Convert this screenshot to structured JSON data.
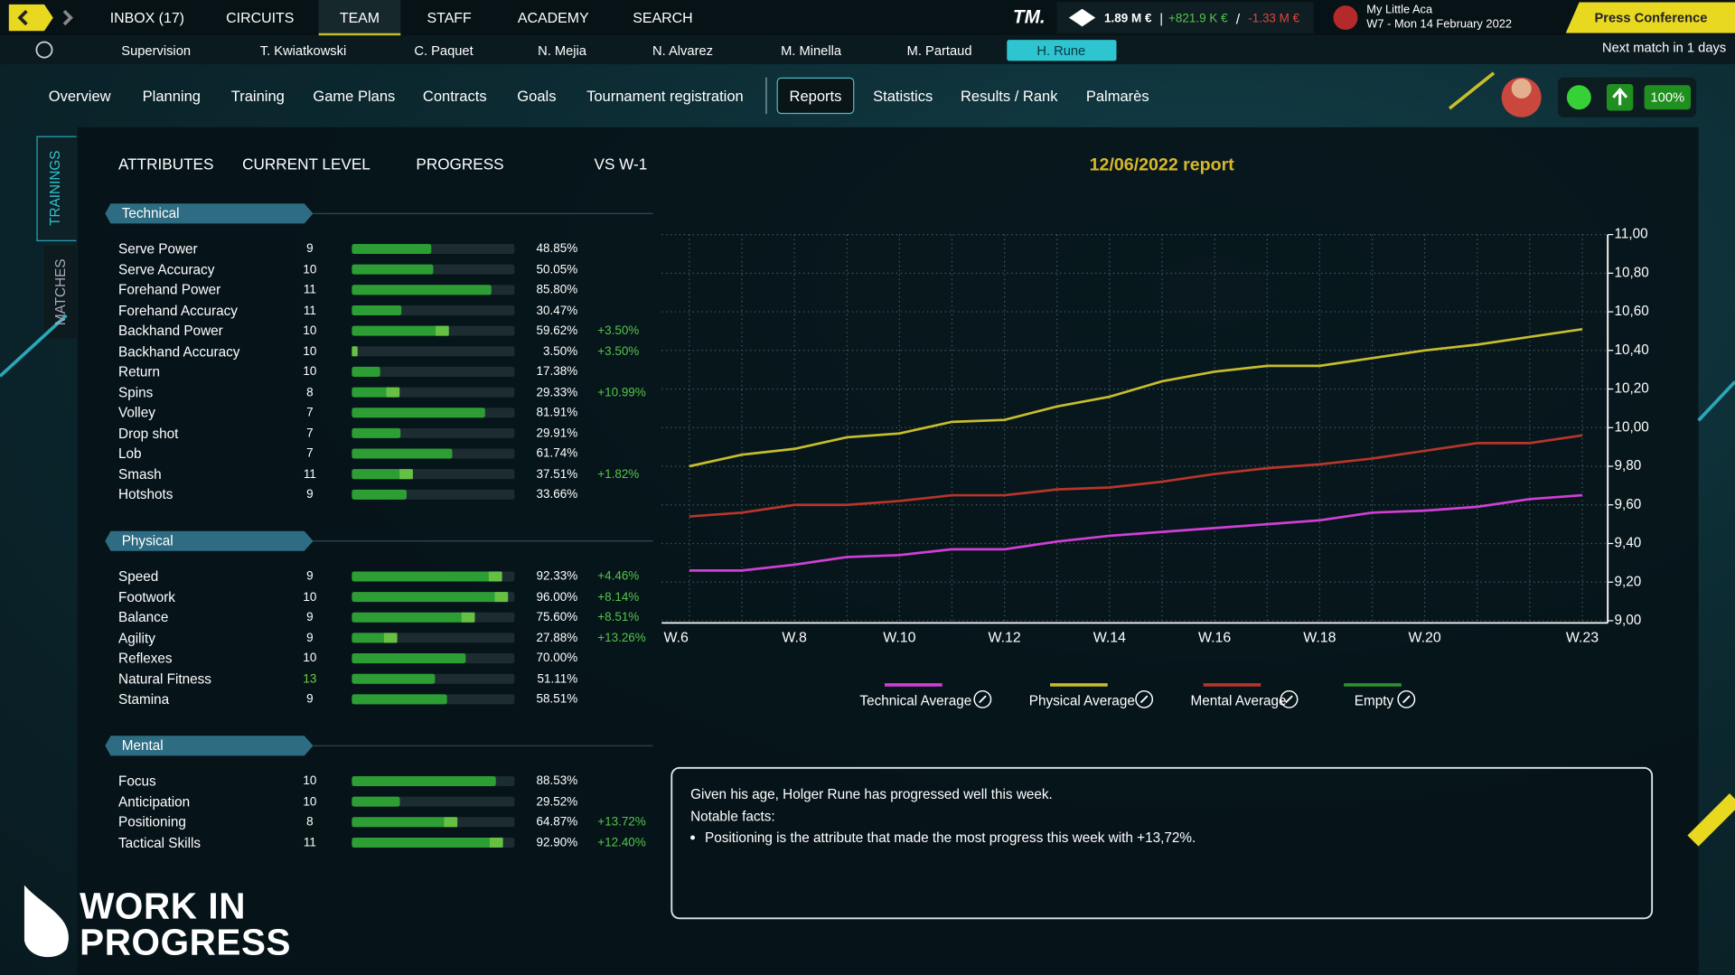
{
  "top_nav": {
    "items": [
      "INBOX (17)",
      "CIRCUITS",
      "TEAM",
      "STAFF",
      "ACADEMY",
      "SEARCH"
    ],
    "active": 2
  },
  "finance": {
    "logo": "TM.",
    "balance": "1.89 M €",
    "sep1": "|",
    "income": "+821.9 K €",
    "sep2": "/",
    "expense": "-1.33 M €"
  },
  "club": {
    "name": "My Little Aca",
    "date": "W7 - Mon 14 February 2022"
  },
  "press_button": "Press Conference",
  "players": {
    "items": [
      "Supervision",
      "T. Kwiatkowski",
      "C. Paquet",
      "N. Mejia",
      "N. Alvarez",
      "M. Minella",
      "M. Partaud",
      "H. Rune"
    ],
    "active": 7
  },
  "next_match": "Next match in 1 days",
  "tabs": {
    "items": [
      "Overview",
      "Planning",
      "Training",
      "Game Plans",
      "Contracts",
      "Goals",
      "Tournament registration",
      "Reports",
      "Statistics",
      "Results / Rank",
      "Palmarès"
    ],
    "active": 7
  },
  "status": {
    "form": "100%"
  },
  "side_tabs": [
    "TRAININGS",
    "MATCHES"
  ],
  "columns": [
    "ATTRIBUTES",
    "CURRENT LEVEL",
    "PROGRESS",
    "VS W-1"
  ],
  "groups": [
    {
      "name": "Technical",
      "rows": [
        {
          "name": "Serve Power",
          "level": 9,
          "progress": 48.85,
          "progress_label": "48.85%"
        },
        {
          "name": "Serve Accuracy",
          "level": 10,
          "progress": 50.05,
          "progress_label": "50.05%"
        },
        {
          "name": "Forehand Power",
          "level": 11,
          "progress": 85.8,
          "progress_label": "85.80%"
        },
        {
          "name": "Forehand Accuracy",
          "level": 11,
          "progress": 30.47,
          "progress_label": "30.47%"
        },
        {
          "name": "Backhand Power",
          "level": 10,
          "progress": 59.62,
          "progress_label": "59.62%",
          "change": "+3.50%"
        },
        {
          "name": "Backhand Accuracy",
          "level": 10,
          "progress": 3.5,
          "progress_label": "3.50%",
          "change": "+3.50%"
        },
        {
          "name": "Return",
          "level": 10,
          "progress": 17.38,
          "progress_label": "17.38%"
        },
        {
          "name": "Spins",
          "level": 8,
          "progress": 29.33,
          "progress_label": "29.33%",
          "change": "+10.99%"
        },
        {
          "name": "Volley",
          "level": 7,
          "progress": 81.91,
          "progress_label": "81.91%"
        },
        {
          "name": "Drop shot",
          "level": 7,
          "progress": 29.91,
          "progress_label": "29.91%"
        },
        {
          "name": "Lob",
          "level": 7,
          "progress": 61.74,
          "progress_label": "61.74%"
        },
        {
          "name": "Smash",
          "level": 11,
          "progress": 37.51,
          "progress_label": "37.51%",
          "change": "+1.82%"
        },
        {
          "name": "Hotshots",
          "level": 9,
          "progress": 33.66,
          "progress_label": "33.66%"
        }
      ]
    },
    {
      "name": "Physical",
      "rows": [
        {
          "name": "Speed",
          "level": 9,
          "progress": 92.33,
          "progress_label": "92.33%",
          "change": "+4.46%"
        },
        {
          "name": "Footwork",
          "level": 10,
          "progress": 96.0,
          "progress_label": "96.00%",
          "change": "+8.14%"
        },
        {
          "name": "Balance",
          "level": 9,
          "progress": 75.6,
          "progress_label": "75.60%",
          "change": "+8.51%"
        },
        {
          "name": "Agility",
          "level": 9,
          "progress": 27.88,
          "progress_label": "27.88%",
          "change": "+13.26%"
        },
        {
          "name": "Reflexes",
          "level": 10,
          "progress": 70.0,
          "progress_label": "70.00%"
        },
        {
          "name": "Natural Fitness",
          "level": 13,
          "progress": 51.11,
          "progress_label": "51.11%",
          "highlight": true
        },
        {
          "name": "Stamina",
          "level": 9,
          "progress": 58.51,
          "progress_label": "58.51%"
        }
      ]
    },
    {
      "name": "Mental",
      "rows": [
        {
          "name": "Focus",
          "level": 10,
          "progress": 88.53,
          "progress_label": "88.53%"
        },
        {
          "name": "Anticipation",
          "level": 10,
          "progress": 29.52,
          "progress_label": "29.52%"
        },
        {
          "name": "Positioning",
          "level": 8,
          "progress": 64.87,
          "progress_label": "64.87%",
          "change": "+13.72%"
        },
        {
          "name": "Tactical Skills",
          "level": 11,
          "progress": 92.9,
          "progress_label": "92.90%",
          "change": "+12.40%"
        }
      ]
    }
  ],
  "chart_data": {
    "type": "line",
    "title": "12/06/2022 report",
    "categories": [
      "W.6",
      null,
      "W.8",
      null,
      "W.10",
      null,
      "W.12",
      null,
      "W.14",
      null,
      "W.16",
      null,
      "W.18",
      null,
      "W.20",
      null,
      null,
      "W.23"
    ],
    "series": [
      {
        "name": "Technical Average",
        "color": "#d23fd6",
        "values": [
          9.26,
          9.26,
          9.29,
          9.33,
          9.34,
          9.37,
          9.37,
          9.41,
          9.44,
          9.46,
          9.48,
          9.5,
          9.52,
          9.56,
          9.57,
          9.59,
          9.63,
          9.65
        ]
      },
      {
        "name": "Physical Average",
        "color": "#c8bd2c",
        "values": [
          9.8,
          9.86,
          9.89,
          9.95,
          9.97,
          10.03,
          10.04,
          10.11,
          10.16,
          10.24,
          10.29,
          10.32,
          10.32,
          10.36,
          10.4,
          10.43,
          10.47,
          10.51
        ]
      },
      {
        "name": "Mental Average",
        "color": "#b8352b",
        "values": [
          9.54,
          9.56,
          9.6,
          9.6,
          9.62,
          9.65,
          9.65,
          9.68,
          9.69,
          9.72,
          9.76,
          9.79,
          9.81,
          9.84,
          9.88,
          9.92,
          9.92,
          9.96
        ]
      },
      {
        "name": "Empty",
        "color": "#2f8f2f",
        "values": [
          null,
          null,
          null,
          null,
          null,
          null,
          null,
          null,
          null,
          null,
          null,
          null,
          null,
          null,
          null,
          null,
          null,
          null
        ]
      }
    ],
    "ylim": [
      9,
      11
    ],
    "yticks": [
      {
        "value": 9,
        "label": "9,00"
      },
      {
        "value": 9.2,
        "label": "9,20"
      },
      {
        "value": 9.4,
        "label": "9,40"
      },
      {
        "value": 9.6,
        "label": "9,60"
      },
      {
        "value": 9.8,
        "label": "9,80"
      },
      {
        "value": 10,
        "label": "10,00"
      },
      {
        "value": 10.2,
        "label": "10,20"
      },
      {
        "value": 10.4,
        "label": "10,40"
      },
      {
        "value": 10.6,
        "label": "10,60"
      },
      {
        "value": 10.8,
        "label": "10,80"
      },
      {
        "value": 11,
        "label": "11,00"
      }
    ],
    "grid": true,
    "legend": "bottom"
  },
  "report": {
    "lines": [
      "Given his age, Holger Rune has progressed well this week.",
      "Notable facts:"
    ],
    "bullets": [
      "Positioning is the attribute that made the most progress this week with +13,72%."
    ]
  },
  "watermark": [
    "WORK IN",
    "PROGRESS"
  ]
}
